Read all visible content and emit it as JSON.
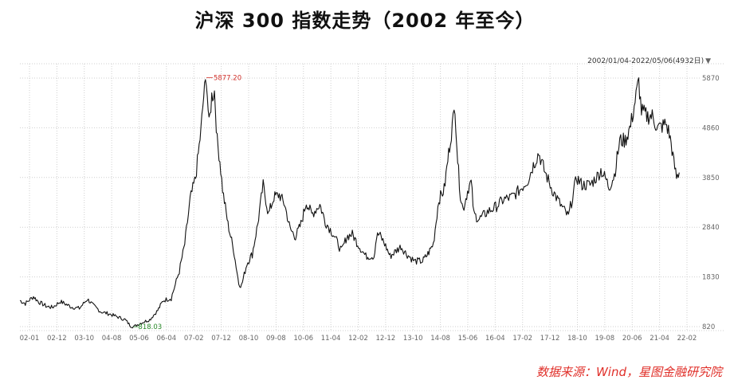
{
  "title": "沪深 300 指数走势（2002 年至今）",
  "range_label": "2002/01/04-2022/05/06(4932日)",
  "source": "数据来源：Wind，星图金融研究院",
  "colors": {
    "line": "#111111",
    "max_label": "#d0302a",
    "min_label": "#2a8a2a",
    "grid": "#cfcfcf",
    "source": "#e0302a"
  },
  "chart_data": {
    "type": "line",
    "ylim": [
      820,
      5870
    ],
    "y_ticks": [
      "5870",
      "4860",
      "3850",
      "2840",
      "1830",
      "820"
    ],
    "x_ticks": [
      "02-01",
      "02-12",
      "03-10",
      "04-08",
      "05-06",
      "06-04",
      "07-02",
      "07-12",
      "08-10",
      "09-08",
      "10-06",
      "11-04",
      "12-02",
      "12-12",
      "13-10",
      "14-08",
      "15-06",
      "16-04",
      "17-02",
      "17-12",
      "18-10",
      "19-08",
      "20-06",
      "21-04",
      "22-02"
    ],
    "annotations": {
      "max": "5877.20",
      "min": "818.03"
    },
    "series": [
      {
        "points": [
          [
            "2002-01",
            1350
          ],
          [
            "2002-03",
            1290
          ],
          [
            "2002-06",
            1430
          ],
          [
            "2002-08",
            1320
          ],
          [
            "2002-11",
            1230
          ],
          [
            "2003-01",
            1210
          ],
          [
            "2003-04",
            1330
          ],
          [
            "2003-08",
            1220
          ],
          [
            "2003-11",
            1190
          ],
          [
            "2004-02",
            1380
          ],
          [
            "2004-04",
            1260
          ],
          [
            "2004-07",
            1120
          ],
          [
            "2004-10",
            1080
          ],
          [
            "2005-01",
            1020
          ],
          [
            "2005-04",
            960
          ],
          [
            "2005-06",
            830
          ],
          [
            "2005-07",
            818
          ],
          [
            "2005-10",
            900
          ],
          [
            "2006-01",
            960
          ],
          [
            "2006-04",
            1150
          ],
          [
            "2006-06",
            1350
          ],
          [
            "2006-09",
            1400
          ],
          [
            "2006-12",
            1950
          ],
          [
            "2007-02",
            2500
          ],
          [
            "2007-04",
            3400
          ],
          [
            "2007-06",
            3850
          ],
          [
            "2007-08",
            4800
          ],
          [
            "2007-09",
            5500
          ],
          [
            "2007-10",
            5877
          ],
          [
            "2007-11",
            4900
          ],
          [
            "2007-12",
            5500
          ],
          [
            "2008-01",
            5600
          ],
          [
            "2008-02",
            4600
          ],
          [
            "2008-03",
            4200
          ],
          [
            "2008-04",
            3600
          ],
          [
            "2008-06",
            2900
          ],
          [
            "2008-08",
            2400
          ],
          [
            "2008-10",
            1700
          ],
          [
            "2008-11",
            1650
          ],
          [
            "2009-01",
            2100
          ],
          [
            "2009-03",
            2300
          ],
          [
            "2009-05",
            2900
          ],
          [
            "2009-07",
            3700
          ],
          [
            "2009-09",
            3100
          ],
          [
            "2009-11",
            3450
          ],
          [
            "2010-01",
            3500
          ],
          [
            "2010-03",
            3300
          ],
          [
            "2010-05",
            2800
          ],
          [
            "2010-07",
            2650
          ],
          [
            "2010-09",
            2900
          ],
          [
            "2010-11",
            3350
          ],
          [
            "2011-01",
            3100
          ],
          [
            "2011-04",
            3300
          ],
          [
            "2011-06",
            2950
          ],
          [
            "2011-09",
            2700
          ],
          [
            "2011-12",
            2350
          ],
          [
            "2012-02",
            2650
          ],
          [
            "2012-04",
            2700
          ],
          [
            "2012-06",
            2500
          ],
          [
            "2012-09",
            2250
          ],
          [
            "2012-12",
            2250
          ],
          [
            "2013-01",
            2650
          ],
          [
            "2013-02",
            2700
          ],
          [
            "2013-04",
            2500
          ],
          [
            "2013-06",
            2250
          ],
          [
            "2013-08",
            2350
          ],
          [
            "2013-10",
            2450
          ],
          [
            "2013-12",
            2300
          ],
          [
            "2014-03",
            2150
          ],
          [
            "2014-06",
            2150
          ],
          [
            "2014-08",
            2300
          ],
          [
            "2014-10",
            2500
          ],
          [
            "2014-12",
            3400
          ],
          [
            "2015-02",
            3600
          ],
          [
            "2015-04",
            4500
          ],
          [
            "2015-06",
            5300
          ],
          [
            "2015-07",
            4200
          ],
          [
            "2015-08",
            3500
          ],
          [
            "2015-09",
            3200
          ],
          [
            "2015-11",
            3650
          ],
          [
            "2015-12",
            3750
          ],
          [
            "2016-01",
            3100
          ],
          [
            "2016-03",
            3000
          ],
          [
            "2016-06",
            3150
          ],
          [
            "2016-09",
            3250
          ],
          [
            "2016-12",
            3400
          ],
          [
            "2017-03",
            3450
          ],
          [
            "2017-06",
            3600
          ],
          [
            "2017-09",
            3800
          ],
          [
            "2017-11",
            4100
          ],
          [
            "2018-01",
            4350
          ],
          [
            "2018-03",
            4000
          ],
          [
            "2018-06",
            3600
          ],
          [
            "2018-09",
            3300
          ],
          [
            "2018-12",
            3050
          ],
          [
            "2019-03",
            3850
          ],
          [
            "2019-05",
            3700
          ],
          [
            "2019-08",
            3700
          ],
          [
            "2019-11",
            3900
          ],
          [
            "2019-12",
            4000
          ],
          [
            "2020-02",
            3800
          ],
          [
            "2020-03",
            3650
          ],
          [
            "2020-05",
            3900
          ],
          [
            "2020-07",
            4600
          ],
          [
            "2020-09",
            4600
          ],
          [
            "2020-11",
            4900
          ],
          [
            "2021-01",
            5500
          ],
          [
            "2021-02",
            5800
          ],
          [
            "2021-03",
            5200
          ],
          [
            "2021-05",
            5100
          ],
          [
            "2021-07",
            5100
          ],
          [
            "2021-09",
            4850
          ],
          [
            "2021-11",
            4900
          ],
          [
            "2021-12",
            4950
          ],
          [
            "2022-01",
            4800
          ],
          [
            "2022-02",
            4550
          ],
          [
            "2022-03",
            4150
          ],
          [
            "2022-04",
            3850
          ],
          [
            "2022-05",
            3950
          ]
        ]
      }
    ]
  }
}
